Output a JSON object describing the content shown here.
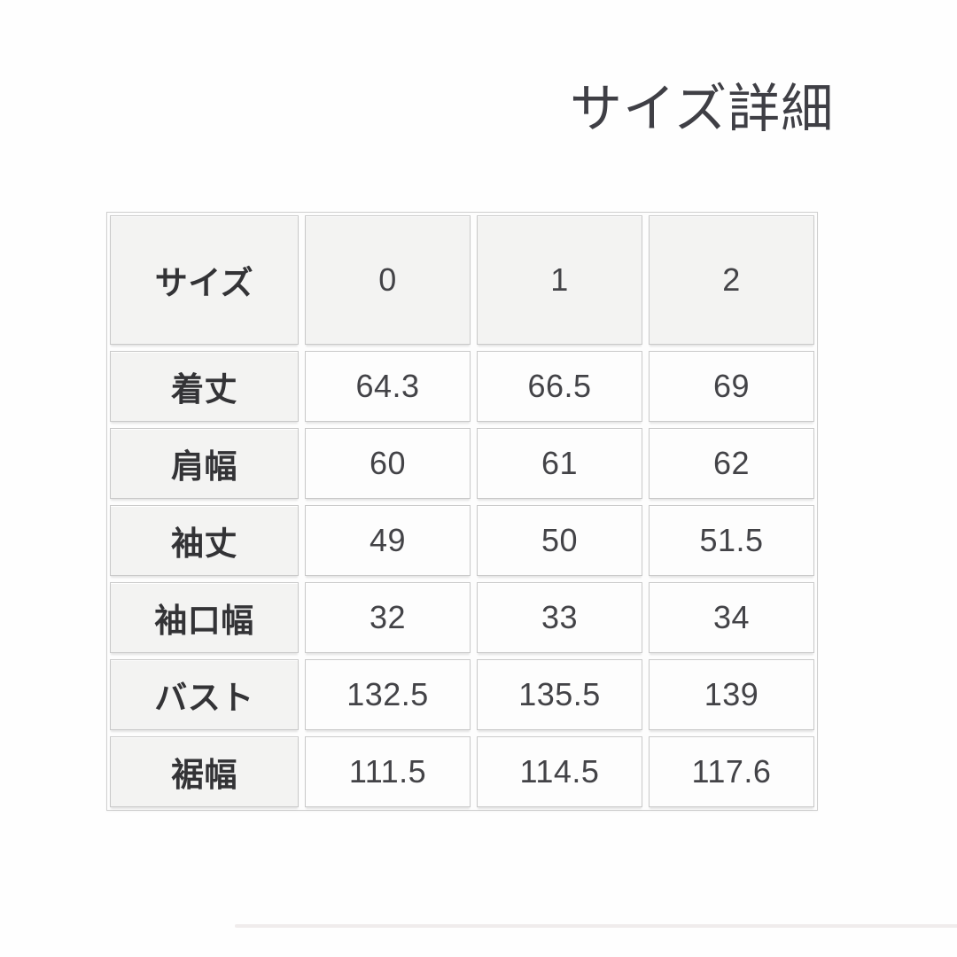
{
  "title": "サイズ詳細",
  "chart_data": {
    "type": "table",
    "title": "サイズ詳細",
    "unit_hint": "cm",
    "header": [
      "サイズ",
      "0",
      "1",
      "2"
    ],
    "rows": [
      {
        "label": "着丈",
        "values": [
          64.3,
          66.5,
          69
        ]
      },
      {
        "label": "肩幅",
        "values": [
          60,
          61,
          62
        ]
      },
      {
        "label": "袖丈",
        "values": [
          49,
          50,
          51.5
        ]
      },
      {
        "label": "袖口幅",
        "values": [
          32,
          33,
          34
        ]
      },
      {
        "label": "バスト",
        "values": [
          132.5,
          135.5,
          139
        ]
      },
      {
        "label": "裾幅",
        "values": [
          111.5,
          114.5,
          117.6
        ]
      }
    ]
  },
  "colors": {
    "page_background": "#fefefe",
    "header_cell_background": "#f3f3f2",
    "data_cell_background": "#fdfdfd",
    "cell_border": "#c9c9c9",
    "text": "#434347",
    "title_text": "#3f3f45",
    "bottom_divider": "#f0ecec"
  }
}
